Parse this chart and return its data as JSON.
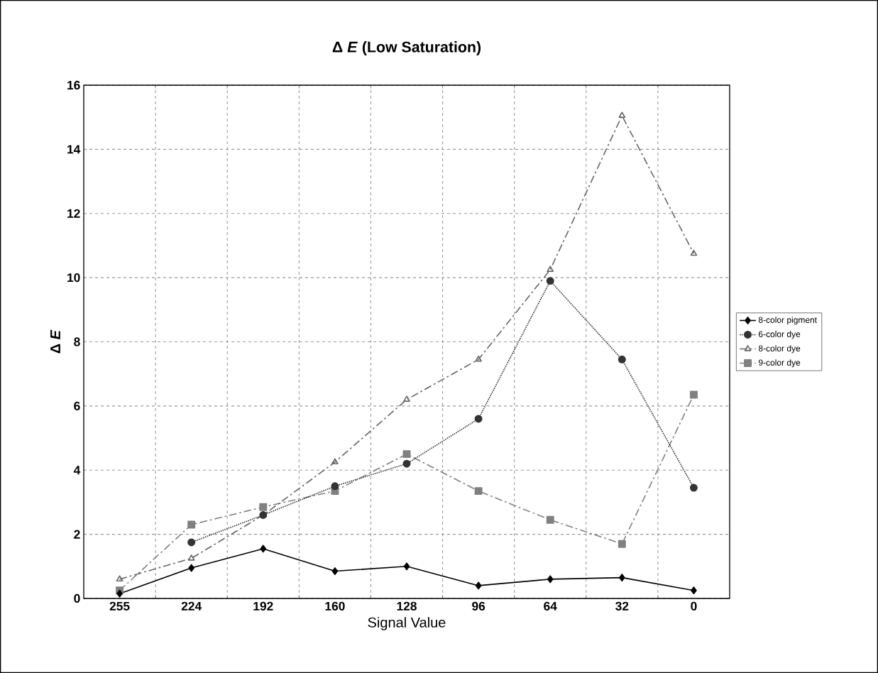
{
  "chart_data": {
    "type": "line",
    "title": "Δ *E* (Low Saturation)",
    "xlabel": "Signal Value",
    "ylabel": "Δ *E*",
    "categories": [
      "255",
      "224",
      "192",
      "160",
      "128",
      "96",
      "64",
      "32",
      "0"
    ],
    "ylim": [
      0,
      16
    ],
    "yticks": [
      0,
      2,
      4,
      6,
      8,
      10,
      12,
      14,
      16
    ],
    "grid": true,
    "legend": "right",
    "series": [
      {
        "name": "8-color pigment",
        "color": "#000000",
        "marker": "diamond",
        "line_style": "solid",
        "values": [
          0.15,
          0.95,
          1.55,
          0.85,
          1.0,
          0.4,
          0.6,
          0.65,
          0.25
        ]
      },
      {
        "name": "6-color dye",
        "color": "#333333",
        "marker": "circle",
        "line_style": "dotted",
        "values": [
          null,
          1.75,
          2.6,
          3.5,
          4.2,
          5.6,
          9.9,
          7.45,
          3.45
        ]
      },
      {
        "name": "8-color dye",
        "color": "#666666",
        "marker": "triangle",
        "line_style": "dashed",
        "values": [
          0.6,
          1.25,
          2.6,
          4.25,
          6.2,
          7.45,
          10.25,
          15.05,
          10.75
        ]
      },
      {
        "name": "9-color dye",
        "color": "#808080",
        "marker": "square",
        "line_style": "dashed",
        "values": [
          0.25,
          2.3,
          2.85,
          3.35,
          4.5,
          3.35,
          2.45,
          1.7,
          6.35
        ]
      }
    ]
  }
}
